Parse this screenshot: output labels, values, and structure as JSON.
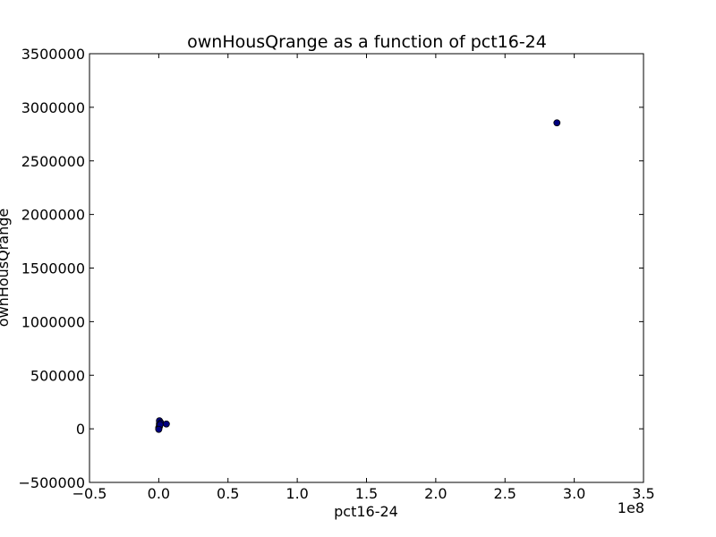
{
  "chart_data": {
    "type": "scatter",
    "title": "ownHousQrange as a function of pct16-24",
    "xlabel": "pct16-24",
    "ylabel": "ownHousQrange",
    "x_offset_label": "1e8",
    "xlim": [
      -0.5,
      3.5
    ],
    "ylim": [
      -500000,
      3500000
    ],
    "x_ticks": [
      -0.5,
      0.0,
      0.5,
      1.0,
      1.5,
      2.0,
      2.5,
      3.0,
      3.5
    ],
    "x_tick_labels": [
      "−0.5",
      "0.0",
      "0.5",
      "1.0",
      "1.5",
      "2.0",
      "2.5",
      "3.0",
      "3.5"
    ],
    "y_ticks": [
      -500000,
      0,
      500000,
      1000000,
      1500000,
      2000000,
      2500000,
      3000000,
      3500000
    ],
    "y_tick_labels": [
      "−500000",
      "0",
      "500000",
      "1000000",
      "1500000",
      "2000000",
      "2500000",
      "3000000",
      "3500000"
    ],
    "grid": false,
    "legend": "none",
    "marker_color": "#00007f",
    "points": [
      {
        "x": 0.0,
        "y": 0
      },
      {
        "x": 0.0,
        "y": 10000
      },
      {
        "x": 0.005,
        "y": 20000
      },
      {
        "x": 0.005,
        "y": 35000
      },
      {
        "x": 0.005,
        "y": 50000
      },
      {
        "x": 0.01,
        "y": 65000
      },
      {
        "x": 0.005,
        "y": 75000
      },
      {
        "x": 0.015,
        "y": 55000
      },
      {
        "x": 0.01,
        "y": 40000
      },
      {
        "x": 0.0,
        "y": -5000
      },
      {
        "x": 0.055,
        "y": 45000
      },
      {
        "x": 2.875,
        "y": 2855000
      }
    ]
  }
}
